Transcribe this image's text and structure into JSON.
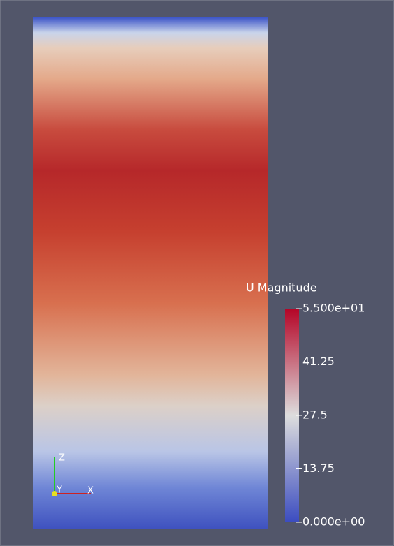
{
  "colorbar": {
    "title": "U Magnitude",
    "range": [
      0,
      55
    ],
    "ticks": [
      {
        "value": 55,
        "label": "5.500e+01"
      },
      41.25,
      27.5,
      13.75,
      {
        "value": 0,
        "label": "0.000e+00"
      }
    ]
  },
  "axes": {
    "labels": [
      "Z",
      "Y",
      "X"
    ]
  }
}
